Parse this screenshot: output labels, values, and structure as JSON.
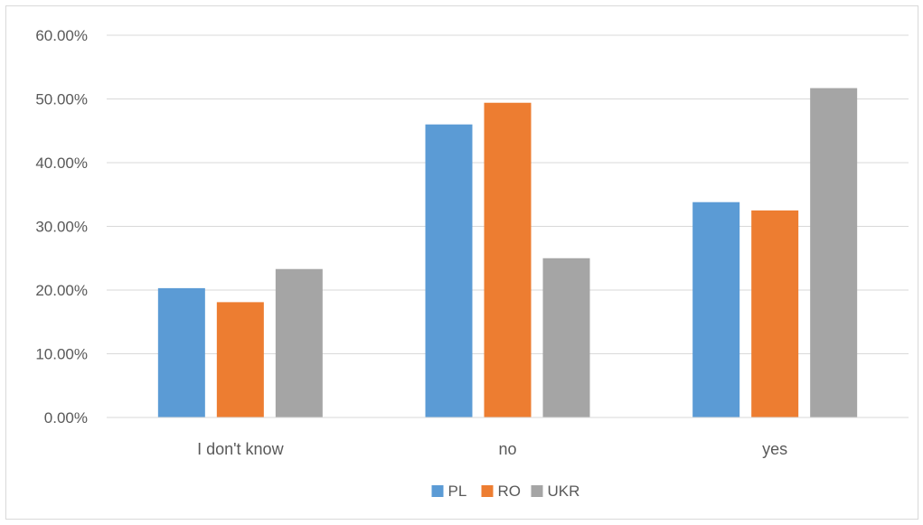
{
  "chart_data": {
    "type": "bar",
    "categories": [
      "I don't know",
      "no",
      "yes"
    ],
    "series": [
      {
        "name": "PL",
        "color": "#5b9bd5",
        "values": [
          20.3,
          46.0,
          33.8
        ]
      },
      {
        "name": "RO",
        "color": "#ed7d31",
        "values": [
          18.1,
          49.4,
          32.5
        ]
      },
      {
        "name": "UKR",
        "color": "#a5a5a5",
        "values": [
          23.3,
          25.0,
          51.7
        ]
      }
    ],
    "ylim": [
      0,
      60
    ],
    "yticks": [
      "0.00%",
      "10.00%",
      "20.00%",
      "30.00%",
      "40.00%",
      "50.00%",
      "60.00%"
    ],
    "grid": true,
    "legend_position": "bottom"
  }
}
